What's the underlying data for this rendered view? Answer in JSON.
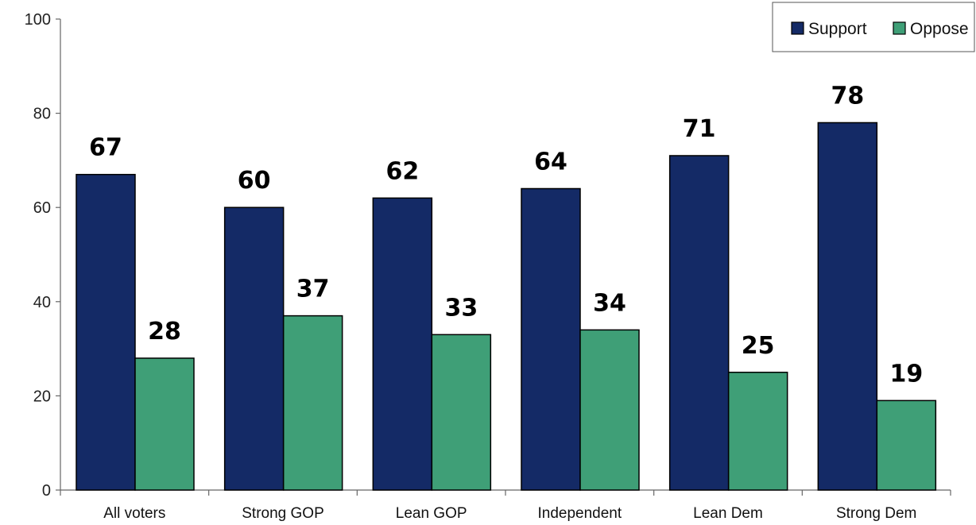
{
  "chart_data": {
    "type": "bar",
    "categories": [
      "All voters",
      "Strong GOP",
      "Lean GOP",
      "Independent",
      "Lean Dem",
      "Strong Dem"
    ],
    "series": [
      {
        "name": "Support",
        "values": [
          67,
          60,
          62,
          64,
          71,
          78
        ],
        "color": "#142a66"
      },
      {
        "name": "Oppose",
        "values": [
          28,
          37,
          33,
          34,
          25,
          19
        ],
        "color": "#3f9f77"
      }
    ],
    "ylim": [
      0,
      100
    ],
    "yticks": [
      0,
      20,
      40,
      60,
      80,
      100
    ],
    "xlabel": "",
    "ylabel": "",
    "title": "",
    "grid": false,
    "legend_position": "top-right"
  }
}
